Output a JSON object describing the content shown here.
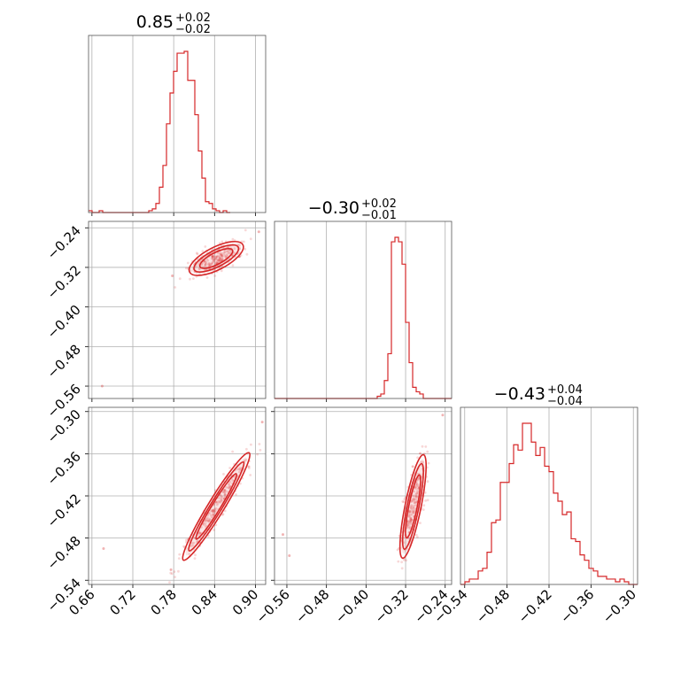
{
  "chart_data": {
    "type": "corner",
    "color": "#d62728",
    "parameters": [
      {
        "title_value": "0.85",
        "err_plus": "+0.02",
        "err_minus": "−0.02",
        "range": [
          0.655,
          0.915
        ],
        "ticks": [
          0.66,
          0.72,
          0.78,
          0.84,
          0.9
        ],
        "tick_labels": [
          "0.66",
          "0.72",
          "0.78",
          "0.84",
          "0.90"
        ],
        "hist_start": 0.655,
        "hist_step": 0.0052,
        "hist_counts": [
          1,
          0,
          0,
          1,
          0,
          0,
          0,
          0,
          0,
          0,
          0,
          0,
          0,
          0,
          0,
          0,
          0,
          1,
          2,
          5,
          14,
          26,
          49,
          66,
          78,
          88,
          88,
          89,
          73,
          73,
          54,
          34,
          19,
          6,
          5,
          2,
          1,
          0,
          1,
          0
        ]
      },
      {
        "title_value": "−0.30",
        "err_plus": "+0.02",
        "err_minus": "−0.01",
        "range": [
          -0.585,
          -0.227
        ],
        "ticks": [
          -0.24,
          -0.32,
          -0.4,
          -0.48,
          -0.56
        ],
        "tick_labels": [
          "−0.24",
          "−0.32",
          "−0.40",
          "−0.48",
          "−0.56"
        ],
        "hist_start": -0.585,
        "hist_step": 0.00716,
        "hist_counts": [
          0,
          0,
          0,
          0,
          0,
          0,
          0,
          0,
          0,
          0,
          0,
          0,
          0,
          0,
          0,
          0,
          0,
          0,
          0,
          0,
          0,
          0,
          0,
          0,
          0,
          0,
          0,
          0,
          0,
          1,
          2,
          8,
          20,
          70,
          72,
          70,
          60,
          34,
          16,
          5,
          3,
          2,
          0,
          0,
          0,
          0,
          0,
          0,
          0,
          0
        ]
      },
      {
        "title_value": "−0.43",
        "err_plus": "+0.04",
        "err_minus": "−0.04",
        "range": [
          -0.546,
          -0.294
        ],
        "ticks": [
          -0.54,
          -0.48,
          -0.42,
          -0.36,
          -0.3
        ],
        "tick_labels": [
          "−0.54",
          "−0.48",
          "−0.42",
          "−0.36",
          "−0.30"
        ],
        "hist_start": -0.546,
        "hist_step": 0.0063,
        "hist_counts": [
          0,
          1,
          2,
          2,
          5,
          6,
          12,
          23,
          24,
          38,
          38,
          45,
          52,
          50,
          60,
          60,
          53,
          48,
          51,
          44,
          42,
          34,
          31,
          26,
          27,
          17,
          16,
          11,
          9,
          6,
          5,
          3,
          3,
          2,
          2,
          1,
          2,
          1,
          0,
          0
        ]
      }
    ],
    "pairs": [
      {
        "x_param": 0,
        "y_param": 1,
        "line": {
          "x": [
            0.8,
            0.885
          ],
          "y": [
            -0.332,
            -0.272
          ]
        },
        "width": 0.012,
        "contours": [
          [
            0.026,
            0.0075
          ],
          [
            0.038,
            0.01
          ],
          [
            0.045,
            0.013
          ]
        ],
        "outliers": [
          [
            0.675,
            -0.56
          ],
          [
            0.905,
            -0.248
          ],
          [
            0.778,
            -0.337
          ]
        ]
      },
      {
        "x_param": 0,
        "y_param": 2,
        "line": {
          "x": [
            0.79,
            0.895
          ],
          "y": [
            -0.518,
            -0.352
          ]
        },
        "width": 0.006,
        "contours": [
          [
            0.052,
            0.0045
          ],
          [
            0.072,
            0.006
          ],
          [
            0.082,
            0.0075
          ]
        ],
        "outliers": [
          [
            0.677,
            -0.495
          ],
          [
            0.91,
            -0.315
          ],
          [
            0.776,
            -0.525
          ]
        ]
      },
      {
        "x_param": 1,
        "y_param": 2,
        "line": {
          "x": [
            -0.328,
            -0.282
          ],
          "y": [
            -0.515,
            -0.355
          ]
        },
        "width": 0.006,
        "contours": [
          [
            0.042,
            0.007
          ],
          [
            0.058,
            0.009
          ],
          [
            0.068,
            0.011
          ]
        ],
        "outliers": [
          [
            -0.568,
            -0.475
          ],
          [
            -0.555,
            -0.505
          ],
          [
            -0.245,
            -0.305
          ]
        ]
      }
    ],
    "grid": true
  }
}
